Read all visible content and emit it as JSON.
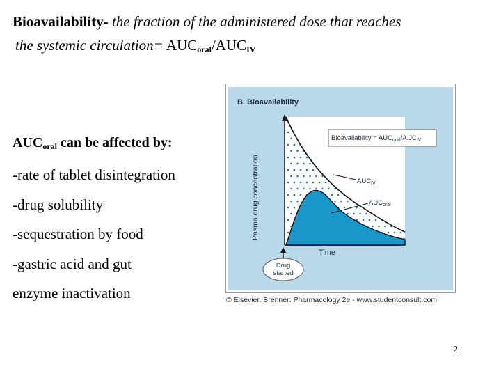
{
  "slide": {
    "title_bold_1": "Bioavailability-",
    "title_italic_1": " the fraction of the administered dose that reaches",
    "title_italic_2": "the systemic circulation=",
    "title_bold_2_prefix": " AUC",
    "title_sub_1": "oral",
    "title_bold_2_mid": "/AUC",
    "title_sub_2": "IV",
    "affect_heading_prefix": "AUC",
    "affect_heading_sub": "oral",
    "affect_heading_suffix": " can be affected by:",
    "factors": [
      "-rate of tablet disintegration",
      "-drug solubility",
      "-sequestration by food",
      "-gastric acid and gut",
      "enzyme inactivation"
    ],
    "page_number": "2"
  },
  "figure": {
    "panel_title": "B. Bioavailability",
    "formula_prefix": "Bioavailability = AUC",
    "formula_sub_1": "oral",
    "formula_mid": "/A.JC",
    "formula_sub_2": "IV",
    "label_iv_prefix": "AUC",
    "label_iv_sub": "IV",
    "label_oral_prefix": "AUC",
    "label_oral_sub": "oral",
    "y_axis_label": "Pasma drug concentration",
    "x_axis_label": "Time",
    "start_label_1": "Drug",
    "start_label_2": "started",
    "caption": "© Elsevier. Brenner: Pharmacology 2e - www.studentconsult.com",
    "colors": {
      "panel_bg": "#b9d8ea",
      "oral_fill": "#1a97c9",
      "dots": "#2a78a8"
    }
  }
}
